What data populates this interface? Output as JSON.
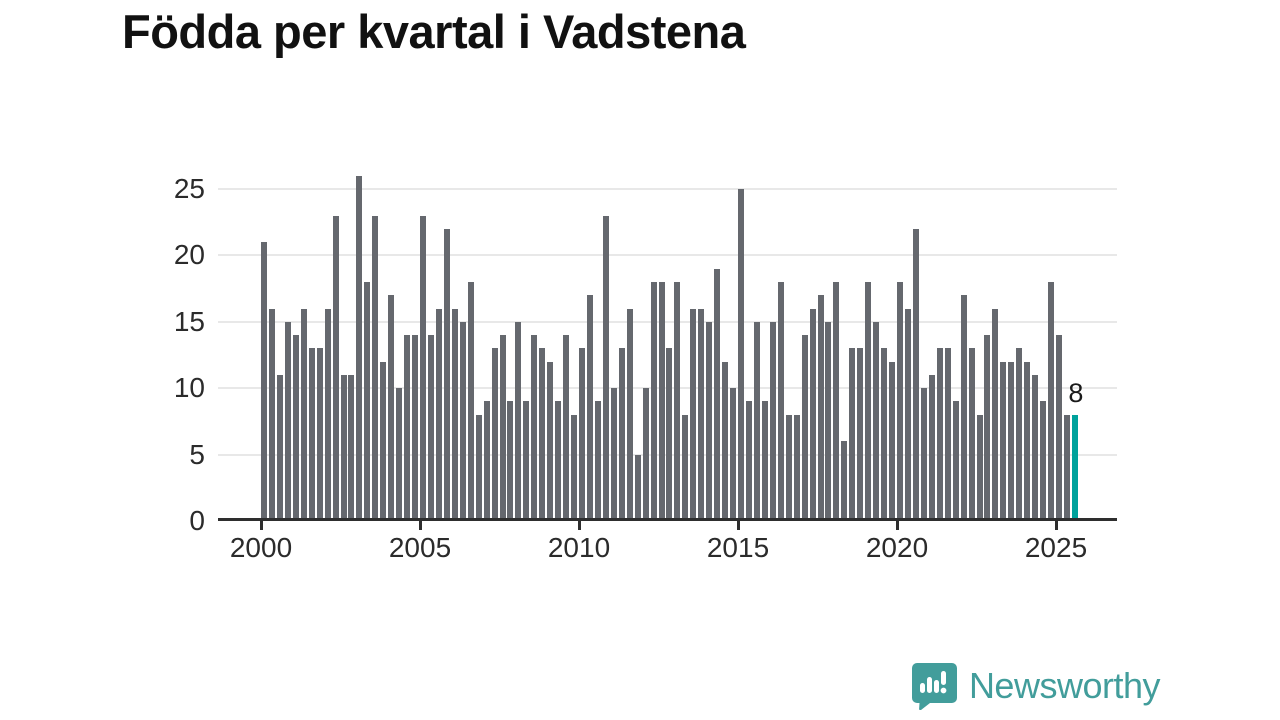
{
  "title": "Födda per kvartal i Vadstena",
  "annotation": {
    "last_value_label": "8"
  },
  "footer": {
    "brand": "Newsworthy"
  },
  "colors": {
    "bar": "#65686e",
    "highlight": "#00a29c",
    "brand_teal": "#429d9b",
    "grid": "#e8e8e8",
    "axis": "#2e2e2e",
    "title_text": "#111111",
    "tick_text": "#2b2b2b"
  },
  "chart_data": {
    "type": "bar",
    "title": "Födda per kvartal i Vadstena",
    "xlabel": "",
    "ylabel": "",
    "ylim": [
      0,
      26
    ],
    "grid": "horizontal",
    "y_ticks": [
      0,
      5,
      10,
      15,
      20,
      25
    ],
    "x_ticks": [
      2000,
      2005,
      2010,
      2015,
      2020,
      2025
    ],
    "start_quarter": "2000Q1",
    "end_quarter": "2025Q3",
    "highlight_index": 102,
    "categories": [
      "2000Q1",
      "2000Q2",
      "2000Q3",
      "2000Q4",
      "2001Q1",
      "2001Q2",
      "2001Q3",
      "2001Q4",
      "2002Q1",
      "2002Q2",
      "2002Q3",
      "2002Q4",
      "2003Q1",
      "2003Q2",
      "2003Q3",
      "2003Q4",
      "2004Q1",
      "2004Q2",
      "2004Q3",
      "2004Q4",
      "2005Q1",
      "2005Q2",
      "2005Q3",
      "2005Q4",
      "2006Q1",
      "2006Q2",
      "2006Q3",
      "2006Q4",
      "2007Q1",
      "2007Q2",
      "2007Q3",
      "2007Q4",
      "2008Q1",
      "2008Q2",
      "2008Q3",
      "2008Q4",
      "2009Q1",
      "2009Q2",
      "2009Q3",
      "2009Q4",
      "2010Q1",
      "2010Q2",
      "2010Q3",
      "2010Q4",
      "2011Q1",
      "2011Q2",
      "2011Q3",
      "2011Q4",
      "2012Q1",
      "2012Q2",
      "2012Q3",
      "2012Q4",
      "2013Q1",
      "2013Q2",
      "2013Q3",
      "2013Q4",
      "2014Q1",
      "2014Q2",
      "2014Q3",
      "2014Q4",
      "2015Q1",
      "2015Q2",
      "2015Q3",
      "2015Q4",
      "2016Q1",
      "2016Q2",
      "2016Q3",
      "2016Q4",
      "2017Q1",
      "2017Q2",
      "2017Q3",
      "2017Q4",
      "2018Q1",
      "2018Q2",
      "2018Q3",
      "2018Q4",
      "2019Q1",
      "2019Q2",
      "2019Q3",
      "2019Q4",
      "2020Q1",
      "2020Q2",
      "2020Q3",
      "2020Q4",
      "2021Q1",
      "2021Q2",
      "2021Q3",
      "2021Q4",
      "2022Q1",
      "2022Q2",
      "2022Q3",
      "2022Q4",
      "2023Q1",
      "2023Q2",
      "2023Q3",
      "2023Q4",
      "2024Q1",
      "2024Q2",
      "2024Q3",
      "2024Q4",
      "2025Q1",
      "2025Q2",
      "2025Q3"
    ],
    "values": [
      21,
      16,
      11,
      15,
      14,
      16,
      13,
      13,
      16,
      23,
      11,
      11,
      26,
      18,
      23,
      12,
      17,
      10,
      14,
      14,
      23,
      14,
      16,
      22,
      16,
      15,
      18,
      8,
      9,
      13,
      14,
      9,
      15,
      9,
      14,
      13,
      12,
      9,
      14,
      8,
      13,
      17,
      9,
      23,
      10,
      13,
      16,
      5,
      10,
      18,
      18,
      13,
      18,
      8,
      16,
      16,
      15,
      19,
      12,
      10,
      25,
      9,
      15,
      9,
      15,
      18,
      8,
      8,
      14,
      16,
      17,
      15,
      18,
      6,
      13,
      13,
      18,
      15,
      13,
      12,
      18,
      16,
      22,
      10,
      11,
      13,
      13,
      9,
      17,
      13,
      8,
      14,
      16,
      12,
      12,
      13,
      12,
      11,
      9,
      18,
      14,
      8,
      8
    ]
  }
}
